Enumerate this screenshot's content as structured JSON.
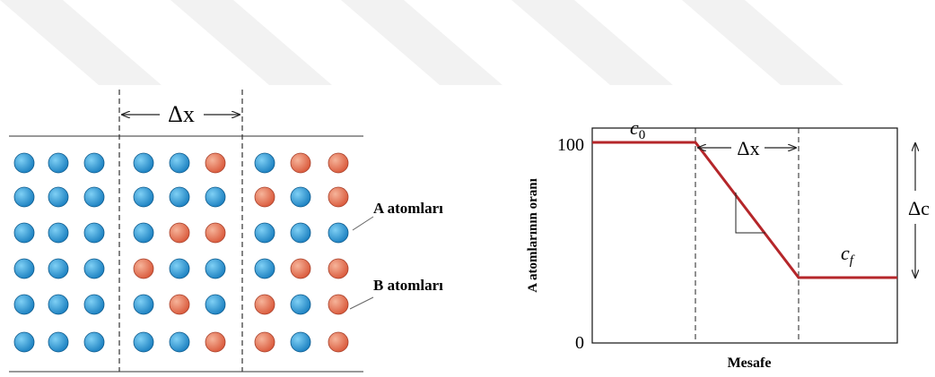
{
  "left_panel": {
    "delta_label": "Δx",
    "labels": [
      "A atomları",
      "B atomları"
    ]
  },
  "right_panel": {
    "y_label": "A atomlarının oranı",
    "y_top": "100",
    "y_bottom": "0",
    "x_label": "Mesafe",
    "delta_x": "Δx",
    "delta_c": "Δc",
    "c0": {
      "base": "c",
      "sub": "0"
    },
    "cf": {
      "base": "c",
      "sub": "f"
    }
  }
}
